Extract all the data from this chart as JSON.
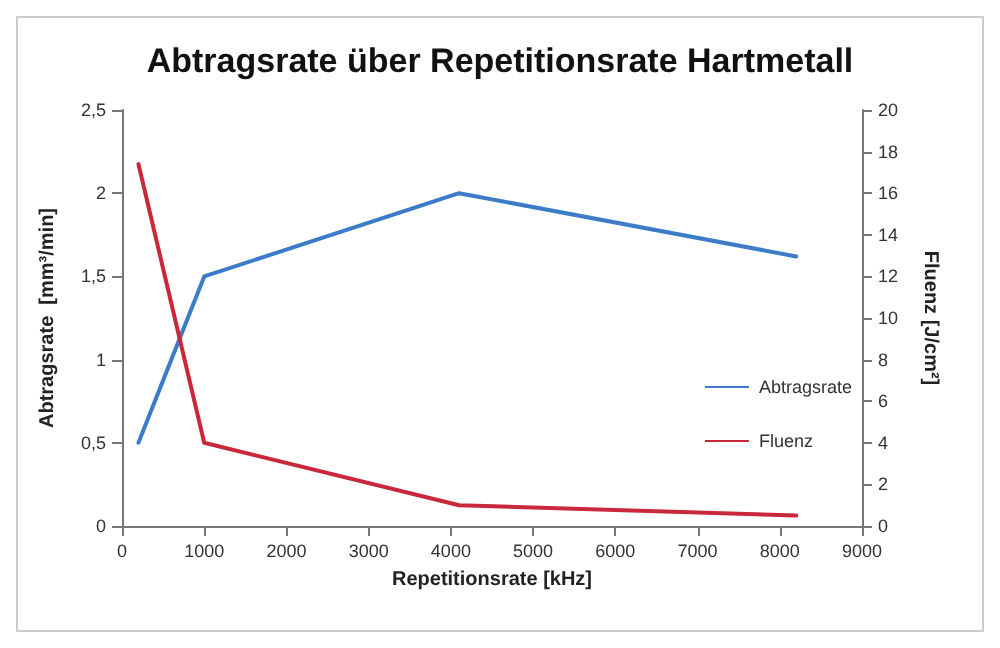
{
  "chart_data": {
    "type": "line",
    "title": "Abtragsrate über Repetitionsrate Hartmetall",
    "xlabel": "Repetitionsrate [kHz]",
    "ylabel": "Abtragsrate  [mm³/min]",
    "y2label": "Fluenz [J/cm²]",
    "x": [
      200,
      1000,
      4100,
      8200
    ],
    "series": [
      {
        "name": "Abtragsrate",
        "color": "#3a7cc8",
        "values": [
          0.5,
          1.5,
          2.0,
          1.62
        ]
      },
      {
        "name": "Fluenz",
        "color": "#c8283a",
        "axis": "y2",
        "values": [
          17.4,
          4.0,
          1.0,
          0.5
        ]
      }
    ],
    "xlim": [
      0,
      9000
    ],
    "xticks": [
      0,
      1000,
      2000,
      3000,
      4000,
      5000,
      6000,
      7000,
      8000,
      9000
    ],
    "ylim": [
      0,
      2.5
    ],
    "yticks": [
      0,
      {
        "value": 0.5,
        "label": "0,5"
      },
      1,
      {
        "value": 1.5,
        "label": "1,5"
      },
      2,
      {
        "value": 2.5,
        "label": "2,5"
      }
    ],
    "y2lim": [
      0,
      20
    ],
    "y2ticks": [
      0,
      2,
      4,
      6,
      8,
      10,
      12,
      14,
      16,
      18,
      20
    ],
    "legend": "right",
    "grid": false
  }
}
